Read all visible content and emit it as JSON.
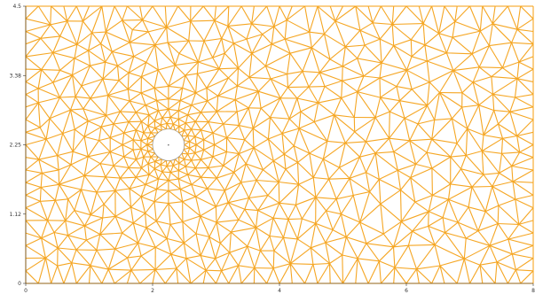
{
  "plot": {
    "x_ticks": [
      "0",
      "2",
      "4",
      "6",
      "8"
    ],
    "y_ticks": [
      "0",
      "1.12",
      "2.25",
      "3.38",
      "4.5"
    ],
    "mesh_color": "#f5a623",
    "background_color": "#ffffff",
    "hole_center_marker": "•"
  },
  "chart_data": {
    "type": "mesh",
    "xlim": [
      0,
      8
    ],
    "ylim": [
      0,
      4.5
    ],
    "obstacle": {
      "shape": "circle",
      "center": [
        2.25,
        2.25
      ],
      "radius": 0.25
    }
  }
}
